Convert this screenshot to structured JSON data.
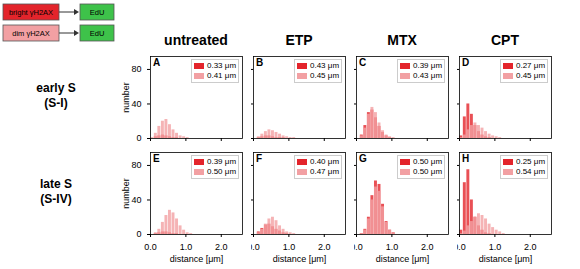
{
  "figure": {
    "columns": [
      "untreated",
      "ETP",
      "MTX",
      "CPT"
    ],
    "rows": [
      [
        "early S",
        "(S-I)"
      ],
      [
        "late S",
        "(S-IV)"
      ]
    ],
    "key": [
      {
        "label": "bright γH2AX",
        "color": "#e3242b",
        "target": "EdU",
        "target_color": "#3ec24a"
      },
      {
        "label": "dim γH2AX",
        "color": "#f2a0a3",
        "target": "EdU",
        "target_color": "#3ec24a"
      }
    ]
  },
  "chart_data": [
    {
      "type": "histogram",
      "title": "A",
      "ylabel": "number",
      "tick_labels": "y",
      "legend": "upper right",
      "bins": [
        0,
        0.1,
        0.2,
        0.3,
        0.4,
        0.5,
        0.6,
        0.7,
        0.8,
        0.9,
        1.0,
        1.1,
        1.2,
        1.3,
        1.4,
        1.5,
        1.6
      ],
      "xlim": [
        0,
        2.6
      ],
      "xticks": [
        {
          "value": 0,
          "label": "0.0"
        },
        {
          "value": 1,
          "label": "1.0"
        },
        {
          "value": 2,
          "label": "2.0"
        }
      ],
      "ylim": [
        0,
        95
      ],
      "yticks": [
        0,
        40,
        80
      ],
      "series": [
        {
          "name": "0.33 μm",
          "color": "#e3242b",
          "values": [
            0,
            2,
            3,
            4,
            3,
            2,
            1,
            1,
            0,
            0,
            0,
            0,
            0,
            0,
            0,
            0
          ]
        },
        {
          "name": "0.41 μm",
          "color": "#f2a0a3",
          "values": [
            1,
            6,
            14,
            20,
            22,
            16,
            10,
            6,
            3,
            2,
            1,
            0,
            0,
            0,
            0,
            0
          ]
        }
      ]
    },
    {
      "type": "histogram",
      "title": "B",
      "tick_labels": false,
      "legend": "upper right",
      "bins": [
        0,
        0.1,
        0.2,
        0.3,
        0.4,
        0.5,
        0.6,
        0.7,
        0.8,
        0.9,
        1.0,
        1.1,
        1.2,
        1.3,
        1.4,
        1.5,
        1.6
      ],
      "xlim": [
        0,
        2.6
      ],
      "xticks": [
        {
          "value": 0,
          "label": "0.0"
        },
        {
          "value": 1,
          "label": "1.0"
        },
        {
          "value": 2,
          "label": "2.0"
        }
      ],
      "ylim": [
        0,
        95
      ],
      "yticks": [
        0,
        40,
        80
      ],
      "series": [
        {
          "name": "0.43 μm",
          "color": "#e3242b",
          "values": [
            0,
            1,
            2,
            3,
            3,
            2,
            1,
            1,
            1,
            0,
            0,
            0,
            0,
            0,
            0,
            0
          ]
        },
        {
          "name": "0.45 μm",
          "color": "#f2a0a3",
          "values": [
            0,
            2,
            5,
            8,
            10,
            9,
            7,
            5,
            3,
            2,
            1,
            1,
            0,
            0,
            0,
            0
          ]
        }
      ]
    },
    {
      "type": "histogram",
      "title": "C",
      "tick_labels": false,
      "legend": "upper right",
      "bins": [
        0,
        0.1,
        0.2,
        0.3,
        0.4,
        0.5,
        0.6,
        0.7,
        0.8,
        0.9,
        1.0,
        1.1,
        1.2,
        1.3,
        1.4,
        1.5,
        1.6
      ],
      "xlim": [
        0,
        2.6
      ],
      "xticks": [
        {
          "value": 0,
          "label": "0.0"
        },
        {
          "value": 1,
          "label": "1.0"
        },
        {
          "value": 2,
          "label": "2.0"
        }
      ],
      "ylim": [
        0,
        95
      ],
      "yticks": [
        0,
        40,
        80
      ],
      "series": [
        {
          "name": "0.39 μm",
          "color": "#e3242b",
          "values": [
            0,
            4,
            15,
            30,
            33,
            24,
            14,
            7,
            3,
            1,
            0,
            0,
            0,
            0,
            0,
            0
          ]
        },
        {
          "name": "0.43 μm",
          "color": "#f2a0a3",
          "values": [
            0,
            3,
            12,
            28,
            36,
            30,
            18,
            9,
            4,
            2,
            1,
            0,
            0,
            0,
            0,
            0
          ]
        }
      ]
    },
    {
      "type": "histogram",
      "title": "D",
      "tick_labels": false,
      "legend": "upper right",
      "bins": [
        0,
        0.1,
        0.2,
        0.3,
        0.4,
        0.5,
        0.6,
        0.7,
        0.8,
        0.9,
        1.0,
        1.1,
        1.2,
        1.3,
        1.4,
        1.5,
        1.6
      ],
      "xlim": [
        0,
        2.6
      ],
      "xticks": [
        {
          "value": 0,
          "label": "0.0"
        },
        {
          "value": 1,
          "label": "1.0"
        },
        {
          "value": 2,
          "label": "2.0"
        }
      ],
      "ylim": [
        0,
        95
      ],
      "yticks": [
        0,
        40,
        80
      ],
      "series": [
        {
          "name": "0.27 μm",
          "color": "#e3242b",
          "values": [
            3,
            25,
            40,
            28,
            15,
            8,
            4,
            2,
            1,
            0,
            0,
            0,
            0,
            0,
            0,
            0
          ]
        },
        {
          "name": "0.45 μm",
          "color": "#f2a0a3",
          "values": [
            1,
            4,
            10,
            15,
            18,
            15,
            12,
            8,
            5,
            3,
            2,
            1,
            0,
            0,
            0,
            0
          ]
        }
      ]
    },
    {
      "type": "histogram",
      "title": "E",
      "xlabel": "distance [μm]",
      "ylabel": "number",
      "legend": "upper right",
      "bins": [
        0,
        0.1,
        0.2,
        0.3,
        0.4,
        0.5,
        0.6,
        0.7,
        0.8,
        0.9,
        1.0,
        1.1,
        1.2,
        1.3,
        1.4,
        1.5,
        1.6
      ],
      "xlim": [
        0,
        2.6
      ],
      "xticks": [
        {
          "value": 0,
          "label": "0.0"
        },
        {
          "value": 1,
          "label": "1.0"
        },
        {
          "value": 2,
          "label": "2.0"
        }
      ],
      "ylim": [
        0,
        95
      ],
      "yticks": [
        0,
        40,
        80
      ],
      "series": [
        {
          "name": "0.39 μm",
          "color": "#e3242b",
          "values": [
            0,
            1,
            2,
            3,
            3,
            2,
            1,
            1,
            0,
            0,
            0,
            0,
            0,
            0,
            0,
            0
          ]
        },
        {
          "name": "0.50 μm",
          "color": "#f2a0a3",
          "values": [
            0,
            2,
            6,
            14,
            22,
            28,
            25,
            18,
            10,
            5,
            2,
            1,
            0,
            0,
            0,
            0
          ]
        }
      ]
    },
    {
      "type": "histogram",
      "title": "F",
      "xlabel": "distance [μm]",
      "tick_labels": "x",
      "legend": "upper right",
      "bins": [
        0,
        0.1,
        0.2,
        0.3,
        0.4,
        0.5,
        0.6,
        0.7,
        0.8,
        0.9,
        1.0,
        1.1,
        1.2,
        1.3,
        1.4,
        1.5,
        1.6
      ],
      "xlim": [
        0,
        2.6
      ],
      "xticks": [
        {
          "value": 0,
          "label": "0.0"
        },
        {
          "value": 1,
          "label": "1.0"
        },
        {
          "value": 2,
          "label": "2.0"
        }
      ],
      "ylim": [
        0,
        95
      ],
      "yticks": [
        0,
        40,
        80
      ],
      "series": [
        {
          "name": "0.40 μm",
          "color": "#e3242b",
          "values": [
            0,
            3,
            7,
            11,
            12,
            9,
            6,
            4,
            2,
            1,
            0,
            0,
            0,
            0,
            0,
            0
          ]
        },
        {
          "name": "0.47 μm",
          "color": "#f2a0a3",
          "values": [
            0,
            2,
            6,
            12,
            18,
            20,
            16,
            10,
            6,
            3,
            2,
            1,
            0,
            0,
            0,
            0
          ]
        }
      ]
    },
    {
      "type": "histogram",
      "title": "G",
      "xlabel": "distance [μm]",
      "tick_labels": "x",
      "legend": "upper right",
      "bins": [
        0,
        0.1,
        0.2,
        0.3,
        0.4,
        0.5,
        0.6,
        0.7,
        0.8,
        0.9,
        1.0,
        1.1,
        1.2,
        1.3,
        1.4,
        1.5,
        1.6
      ],
      "xlim": [
        0,
        2.6
      ],
      "xticks": [
        {
          "value": 0,
          "label": "0.0"
        },
        {
          "value": 1,
          "label": "1.0"
        },
        {
          "value": 2,
          "label": "2.0"
        }
      ],
      "ylim": [
        0,
        95
      ],
      "yticks": [
        0,
        40,
        80
      ],
      "series": [
        {
          "name": "0.50 μm",
          "color": "#e3242b",
          "values": [
            0,
            1,
            6,
            20,
            45,
            62,
            58,
            35,
            15,
            5,
            2,
            0,
            0,
            0,
            0,
            0
          ]
        },
        {
          "name": "0.50 μm",
          "color": "#f2a0a3",
          "values": [
            0,
            1,
            5,
            18,
            40,
            55,
            50,
            32,
            14,
            5,
            2,
            0,
            0,
            0,
            0,
            0
          ]
        }
      ]
    },
    {
      "type": "histogram",
      "title": "H",
      "xlabel": "distance [μm]",
      "tick_labels": "x",
      "legend": "upper right",
      "bins": [
        0,
        0.1,
        0.2,
        0.3,
        0.4,
        0.5,
        0.6,
        0.7,
        0.8,
        0.9,
        1.0,
        1.1,
        1.2,
        1.3,
        1.4,
        1.5,
        1.6
      ],
      "xlim": [
        0,
        2.6
      ],
      "xticks": [
        {
          "value": 0,
          "label": "0.0"
        },
        {
          "value": 1,
          "label": "1.0"
        },
        {
          "value": 2,
          "label": "2.0"
        }
      ],
      "ylim": [
        0,
        95
      ],
      "yticks": [
        0,
        40,
        80
      ],
      "series": [
        {
          "name": "0.25 μm",
          "color": "#e3242b",
          "values": [
            5,
            60,
            75,
            40,
            20,
            10,
            5,
            2,
            1,
            0,
            0,
            0,
            0,
            0,
            0,
            0
          ]
        },
        {
          "name": "0.54 μm",
          "color": "#f2a0a3",
          "values": [
            1,
            4,
            10,
            15,
            20,
            24,
            22,
            18,
            12,
            8,
            5,
            3,
            1,
            0,
            0,
            0
          ]
        }
      ]
    }
  ]
}
